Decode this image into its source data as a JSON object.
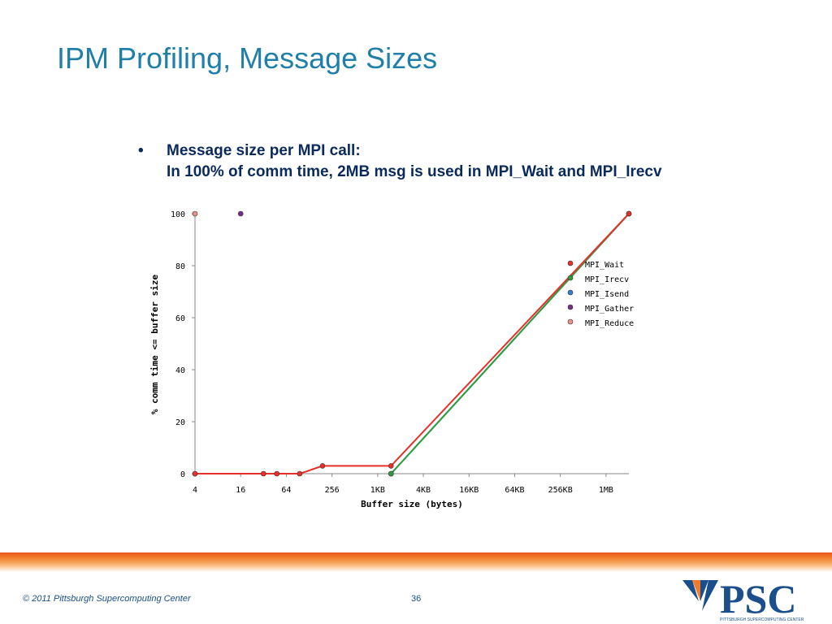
{
  "slide": {
    "title": "IPM Profiling, Message Sizes",
    "bullet": {
      "marker": "•",
      "line1": "Message size per MPI call:",
      "line2": "In 100% of comm time, 2MB msg is used in MPI_Wait and MPI_Irecv"
    },
    "footer": {
      "copyright": "© 2011 Pittsburgh Supercomputing Center",
      "page_number": "36",
      "logo_text": "PSC",
      "logo_subtext": "PITTSBURGH SUPERCOMPUTING CENTER"
    }
  },
  "colors": {
    "title": "#1f7fa8",
    "bullet": "#0a2a5c",
    "footer_text": "#1a4f8c"
  },
  "chart_data": {
    "type": "line",
    "title": "",
    "xlabel": "Buffer size (bytes)",
    "ylabel": "% comm time <= buffer size",
    "x_scale": "log2",
    "x_ticks": [
      {
        "value": 4,
        "label": "4"
      },
      {
        "value": 16,
        "label": "16"
      },
      {
        "value": 64,
        "label": "64"
      },
      {
        "value": 256,
        "label": "256"
      },
      {
        "value": 1024,
        "label": "1KB"
      },
      {
        "value": 4096,
        "label": "4KB"
      },
      {
        "value": 16384,
        "label": "16KB"
      },
      {
        "value": 65536,
        "label": "64KB"
      },
      {
        "value": 262144,
        "label": "256KB"
      },
      {
        "value": 1048576,
        "label": "1MB"
      }
    ],
    "xlim": [
      4,
      2097152
    ],
    "y_ticks": [
      0,
      20,
      40,
      60,
      80,
      100
    ],
    "ylim": [
      0,
      100
    ],
    "legend_position": "right",
    "series": [
      {
        "name": "MPI_Wait",
        "color": "#e8302a",
        "line": true,
        "points": [
          [
            4,
            0
          ],
          [
            32,
            0
          ],
          [
            48,
            0
          ],
          [
            96,
            0
          ],
          [
            192,
            3
          ],
          [
            1536,
            3
          ],
          [
            2097152,
            100
          ]
        ]
      },
      {
        "name": "MPI_Irecv",
        "color": "#2e9e3c",
        "line": true,
        "points": [
          [
            1536,
            0
          ],
          [
            2097152,
            100
          ]
        ]
      },
      {
        "name": "MPI_Isend",
        "color": "#2f7fd6",
        "line": true,
        "points": [
          [
            1536,
            0
          ],
          [
            2097152,
            100
          ]
        ]
      },
      {
        "name": "MPI_Gather",
        "color": "#7a2c8a",
        "line": false,
        "points": [
          [
            16,
            100
          ]
        ]
      },
      {
        "name": "MPI_Reduce",
        "color": "#f0908a",
        "line": false,
        "points": [
          [
            4,
            100
          ]
        ]
      }
    ]
  }
}
